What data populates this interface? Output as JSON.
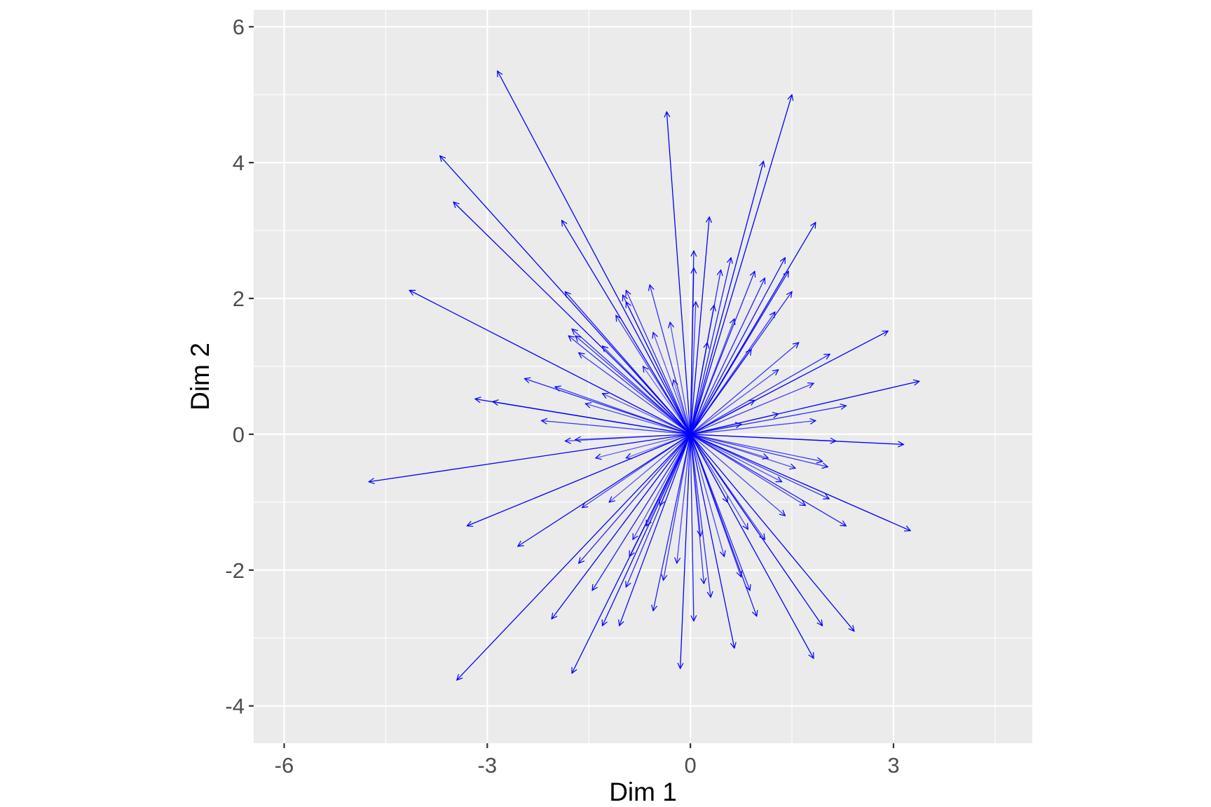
{
  "chart_data": {
    "type": "scatter",
    "subtype": "vector-arrows",
    "title": "",
    "xlabel": "Dim 1",
    "ylabel": "Dim 2",
    "xlim": [
      -6.45,
      5.05
    ],
    "ylim": [
      -4.55,
      6.25
    ],
    "xticks": [
      -6,
      -3,
      0,
      3
    ],
    "yticks": [
      -4,
      -2,
      0,
      2,
      4,
      6
    ],
    "x_tick_labels": [
      "-6",
      "-3",
      "0",
      "3"
    ],
    "y_tick_labels": [
      "-4",
      "-2",
      "0",
      "2",
      "4",
      "6"
    ],
    "grid": true,
    "legend": "none",
    "colors": {
      "panel": "#ebebeb",
      "grid": "#ffffff",
      "arrow": "#0000ff",
      "tick_text": "#4d4d4d",
      "axis_title": "#000000"
    },
    "origin": [
      0,
      0
    ],
    "vectors": [
      [
        -2.85,
        5.35
      ],
      [
        1.5,
        5.0
      ],
      [
        -0.35,
        4.75
      ],
      [
        -3.7,
        4.1
      ],
      [
        1.08,
        4.02
      ],
      [
        -3.5,
        3.42
      ],
      [
        0.28,
        3.2
      ],
      [
        -1.9,
        3.15
      ],
      [
        1.85,
        3.12
      ],
      [
        -4.15,
        2.12
      ],
      [
        2.92,
        1.52
      ],
      [
        3.38,
        0.78
      ],
      [
        -3.18,
        0.52
      ],
      [
        -2.92,
        0.48
      ],
      [
        3.15,
        -0.15
      ],
      [
        -4.75,
        -0.7
      ],
      [
        -3.3,
        -1.35
      ],
      [
        3.25,
        -1.42
      ],
      [
        -2.55,
        -1.65
      ],
      [
        2.42,
        -2.9
      ],
      [
        -3.45,
        -3.62
      ],
      [
        1.95,
        -2.82
      ],
      [
        1.82,
        -3.3
      ],
      [
        -1.75,
        -3.52
      ],
      [
        0.65,
        -3.15
      ],
      [
        -0.15,
        -3.45
      ],
      [
        -2.05,
        -2.72
      ],
      [
        -1.3,
        -2.82
      ],
      [
        -1.05,
        -2.82
      ],
      [
        0.98,
        -2.68
      ],
      [
        0.05,
        -2.75
      ],
      [
        -0.55,
        -2.6
      ],
      [
        0.3,
        -2.4
      ],
      [
        -1.45,
        -2.3
      ],
      [
        0.88,
        -2.3
      ],
      [
        -0.95,
        -2.25
      ],
      [
        2.3,
        -1.35
      ],
      [
        2.05,
        -0.95
      ],
      [
        2.03,
        -0.48
      ],
      [
        1.95,
        -0.4
      ],
      [
        2.3,
        0.42
      ],
      [
        1.85,
        0.2
      ],
      [
        2.06,
        1.18
      ],
      [
        1.82,
        0.75
      ],
      [
        1.5,
        2.1
      ],
      [
        1.45,
        2.4
      ],
      [
        1.4,
        2.6
      ],
      [
        0.95,
        2.4
      ],
      [
        0.6,
        2.6
      ],
      [
        0.45,
        2.42
      ],
      [
        0.05,
        2.7
      ],
      [
        0.05,
        2.45
      ],
      [
        0.08,
        1.95
      ],
      [
        -0.95,
        2.12
      ],
      [
        -1.0,
        2.05
      ],
      [
        -0.95,
        1.95
      ],
      [
        -1.85,
        2.1
      ],
      [
        -1.75,
        1.55
      ],
      [
        -1.8,
        1.45
      ],
      [
        -1.7,
        1.45
      ],
      [
        -2.45,
        0.82
      ],
      [
        -2.0,
        0.7
      ],
      [
        -1.85,
        -0.1
      ],
      [
        -1.7,
        -0.08
      ],
      [
        -1.6,
        -1.08
      ],
      [
        -1.65,
        -1.9
      ],
      [
        -0.85,
        -1.55
      ],
      [
        -0.2,
        -1.9
      ],
      [
        0.5,
        -1.8
      ],
      [
        1.1,
        -1.55
      ],
      [
        1.4,
        -1.2
      ],
      [
        1.35,
        -0.7
      ],
      [
        1.3,
        0.3
      ],
      [
        1.3,
        0.95
      ],
      [
        1.25,
        1.8
      ],
      [
        0.65,
        1.7
      ],
      [
        -0.3,
        1.65
      ],
      [
        -0.55,
        1.5
      ],
      [
        -1.3,
        1.3
      ],
      [
        -1.3,
        0.6
      ],
      [
        -1.4,
        -0.35
      ],
      [
        -1.2,
        -1.0
      ],
      [
        -0.65,
        -1.35
      ],
      [
        0.15,
        -1.5
      ],
      [
        0.85,
        -1.4
      ],
      [
        1.15,
        -0.35
      ],
      [
        0.95,
        0.5
      ],
      [
        0.9,
        1.25
      ],
      [
        0.25,
        1.35
      ],
      [
        -0.7,
        1.0
      ],
      [
        -0.95,
        -0.35
      ],
      [
        -0.45,
        -1.05
      ],
      [
        0.55,
        -1.0
      ],
      [
        0.75,
        0.15
      ],
      [
        -0.25,
        0.8
      ],
      [
        1.55,
        -0.5
      ],
      [
        -1.55,
        0.45
      ],
      [
        0.35,
        1.9
      ],
      [
        -0.4,
        -2.15
      ],
      [
        1.6,
        1.35
      ],
      [
        -1.1,
        1.75
      ],
      [
        0.75,
        -2.1
      ],
      [
        1.1,
        2.3
      ],
      [
        -0.6,
        2.2
      ],
      [
        0.2,
        -2.2
      ],
      [
        -2.2,
        0.2
      ],
      [
        2.15,
        -0.1
      ],
      [
        1.7,
        -1.05
      ],
      [
        -1.65,
        1.2
      ],
      [
        -0.9,
        -1.8
      ]
    ]
  }
}
